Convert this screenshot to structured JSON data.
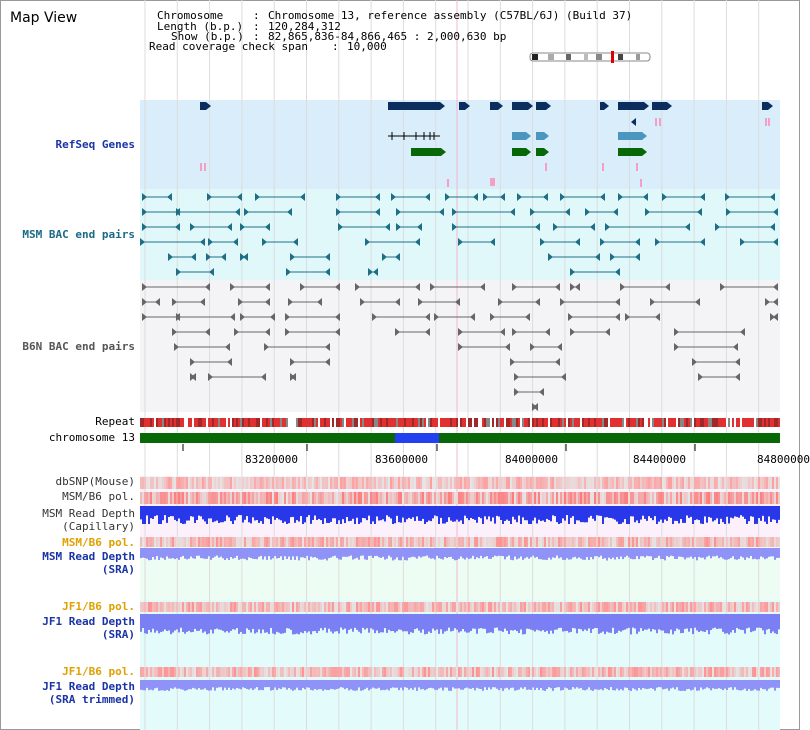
{
  "app": {
    "title": "Map View"
  },
  "info": {
    "chromosome_key": "Chromosome",
    "chromosome_val": "Chromosome 13, reference assembly (C57BL/6J) (Build 37)",
    "length_key": "Length (b.p.)",
    "length_val": "120,284,312",
    "show_key": "Show (b.p.)",
    "show_val": "82,865,836-84,866,465 : 2,000,630 bp",
    "span_key": "Read coverage check span",
    "span_val": "10,000"
  },
  "tracks": {
    "refseq": "RefSeq Genes",
    "msm_bac": "MSM BAC end pairs",
    "b6n_bac": "B6N BAC end pairs",
    "repeat": "Repeat",
    "chromosome": "chromosome 13",
    "dbsnp": "dbSNP(Mouse)",
    "msm_b6_pol_1": "MSM/B6 pol.",
    "msm_depth_cap_1": "MSM Read Depth",
    "msm_depth_cap_2": "(Capillary)",
    "msm_b6_pol_2": "MSM/B6 pol.",
    "msm_depth_sra_1": "MSM Read Depth",
    "msm_depth_sra_2": "(SRA)",
    "jf1_b6_pol_1": "JF1/B6 pol.",
    "jf1_depth_sra_1": "JF1 Read Depth",
    "jf1_depth_sra_2": "(SRA)",
    "jf1_b6_pol_2": "JF1/B6 pol.",
    "jf1_depth_trim_1": "JF1 Read Depth",
    "jf1_depth_trim_2": "(SRA trimmed)"
  },
  "axis": {
    "ticks": [
      "83200000",
      "83600000",
      "84000000",
      "84400000",
      "84800000"
    ]
  },
  "colors": {
    "refseq_bg": "#d9eefa",
    "msm_bg": "#e0f8fa",
    "b6n_bg": "#f4f4f7",
    "gene_navy": "#0b2e5e",
    "gene_teal": "#4a96be",
    "gene_green": "#086808",
    "depth_blue": "#2838e8",
    "depth_light": "#8f93f7"
  }
}
